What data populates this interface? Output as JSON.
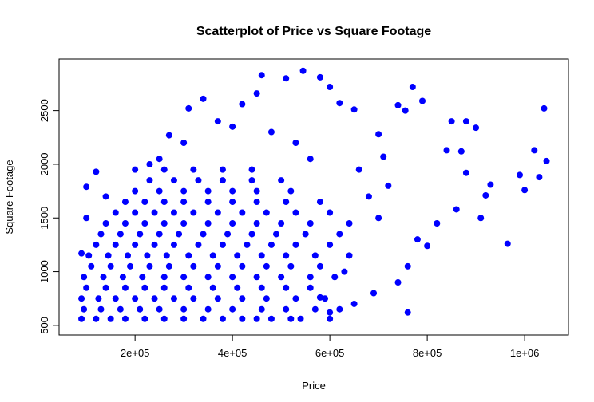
{
  "chart_data": {
    "type": "scatter",
    "title": "Scatterplot of Price vs Square Footage",
    "x_label": "Price",
    "y_label": "Square Footage",
    "color": "#0000ff",
    "xlim": [
      44000,
      1090000
    ],
    "ylim": [
      410,
      2980
    ],
    "xticks": [
      {
        "value": 200000,
        "label": "2e+05"
      },
      {
        "value": 400000,
        "label": "4e+05"
      },
      {
        "value": 600000,
        "label": "6e+05"
      },
      {
        "value": 800000,
        "label": "8e+05"
      },
      {
        "value": 1000000,
        "label": "1e+06"
      }
    ],
    "yticks": [
      500,
      1000,
      1500,
      2000,
      2500
    ],
    "x": [
      1040000,
      1045000,
      1020000,
      1000000,
      990000,
      1030000,
      965000,
      930000,
      920000,
      900000,
      880000,
      850000,
      870000,
      840000,
      910000,
      860000,
      880000,
      770000,
      790000,
      760000,
      755000,
      740000,
      700000,
      710000,
      600000,
      580000,
      545000,
      460000,
      510000,
      620000,
      650000,
      340000,
      310000,
      450000,
      420000,
      200000,
      120000,
      100000,
      140000,
      90000,
      100000,
      820000,
      800000,
      780000,
      740000,
      760000,
      690000,
      650000,
      600000,
      520000,
      450000,
      580000,
      630000,
      700000,
      680000,
      720000,
      660000,
      560000,
      530000,
      480000,
      400000,
      370000,
      270000,
      250000,
      230000,
      300000,
      90000,
      120000,
      150000,
      180000,
      220000,
      260000,
      300000,
      340000,
      380000,
      420000,
      480000,
      540000,
      600000,
      95000,
      130000,
      170000,
      210000,
      250000,
      300000,
      350000,
      400000,
      460000,
      510000,
      570000,
      620000,
      90000,
      125000,
      160000,
      200000,
      240000,
      280000,
      320000,
      370000,
      420000,
      470000,
      530000,
      590000,
      100000,
      140000,
      180000,
      220000,
      260000,
      310000,
      360000,
      410000,
      460000,
      510000,
      560000,
      95000,
      135000,
      175000,
      215000,
      260000,
      300000,
      350000,
      400000,
      450000,
      500000,
      560000,
      610000,
      110000,
      150000,
      190000,
      230000,
      270000,
      320000,
      370000,
      420000,
      470000,
      520000,
      580000,
      105000,
      145000,
      185000,
      225000,
      265000,
      310000,
      360000,
      410000,
      460000,
      510000,
      570000,
      640000,
      120000,
      160000,
      200000,
      240000,
      280000,
      330000,
      380000,
      430000,
      480000,
      530000,
      600000,
      130000,
      170000,
      210000,
      250000,
      290000,
      340000,
      390000,
      440000,
      490000,
      550000,
      620000,
      140000,
      180000,
      220000,
      260000,
      300000,
      350000,
      400000,
      450000,
      500000,
      560000,
      640000,
      160000,
      200000,
      240000,
      280000,
      320000,
      370000,
      420000,
      470000,
      530000,
      600000,
      180000,
      220000,
      260000,
      300000,
      350000,
      400000,
      450000,
      510000,
      580000,
      200000,
      250000,
      300000,
      350000,
      400000,
      450000,
      520000,
      230000,
      280000,
      330000,
      380000,
      440000,
      500000,
      260000,
      320000,
      380000,
      440000
    ],
    "y": [
      2520,
      2030,
      2130,
      1760,
      1900,
      1880,
      1260,
      1810,
      1710,
      2340,
      2400,
      2400,
      2120,
      2130,
      1500,
      1580,
      1920,
      2720,
      2590,
      620,
      2500,
      2550,
      2280,
      2070,
      2720,
      2810,
      2870,
      2830,
      2800,
      2570,
      2510,
      2610,
      2520,
      2660,
      2560,
      1950,
      1930,
      1790,
      1700,
      1170,
      1500,
      1450,
      1240,
      1300,
      900,
      1050,
      800,
      700,
      620,
      560,
      560,
      760,
      1000,
      1500,
      1700,
      1800,
      1950,
      2050,
      2200,
      2300,
      2350,
      2400,
      2270,
      2050,
      2000,
      2200,
      560,
      560,
      560,
      560,
      560,
      560,
      560,
      560,
      560,
      560,
      560,
      560,
      560,
      650,
      650,
      650,
      650,
      650,
      650,
      650,
      650,
      650,
      650,
      650,
      650,
      750,
      750,
      750,
      750,
      750,
      750,
      750,
      750,
      750,
      750,
      750,
      750,
      850,
      850,
      850,
      850,
      850,
      850,
      850,
      850,
      850,
      850,
      850,
      950,
      950,
      950,
      950,
      950,
      950,
      950,
      950,
      950,
      950,
      950,
      950,
      1050,
      1050,
      1050,
      1050,
      1050,
      1050,
      1050,
      1050,
      1050,
      1050,
      1050,
      1150,
      1150,
      1150,
      1150,
      1150,
      1150,
      1150,
      1150,
      1150,
      1150,
      1150,
      1150,
      1250,
      1250,
      1250,
      1250,
      1250,
      1250,
      1250,
      1250,
      1250,
      1250,
      1250,
      1350,
      1350,
      1350,
      1350,
      1350,
      1350,
      1350,
      1350,
      1350,
      1350,
      1350,
      1450,
      1450,
      1450,
      1450,
      1450,
      1450,
      1450,
      1450,
      1450,
      1450,
      1450,
      1550,
      1550,
      1550,
      1550,
      1550,
      1550,
      1550,
      1550,
      1550,
      1550,
      1650,
      1650,
      1650,
      1650,
      1650,
      1650,
      1650,
      1650,
      1650,
      1750,
      1750,
      1750,
      1750,
      1750,
      1750,
      1750,
      1850,
      1850,
      1850,
      1850,
      1850,
      1850,
      1950,
      1950,
      1950,
      1950
    ]
  }
}
